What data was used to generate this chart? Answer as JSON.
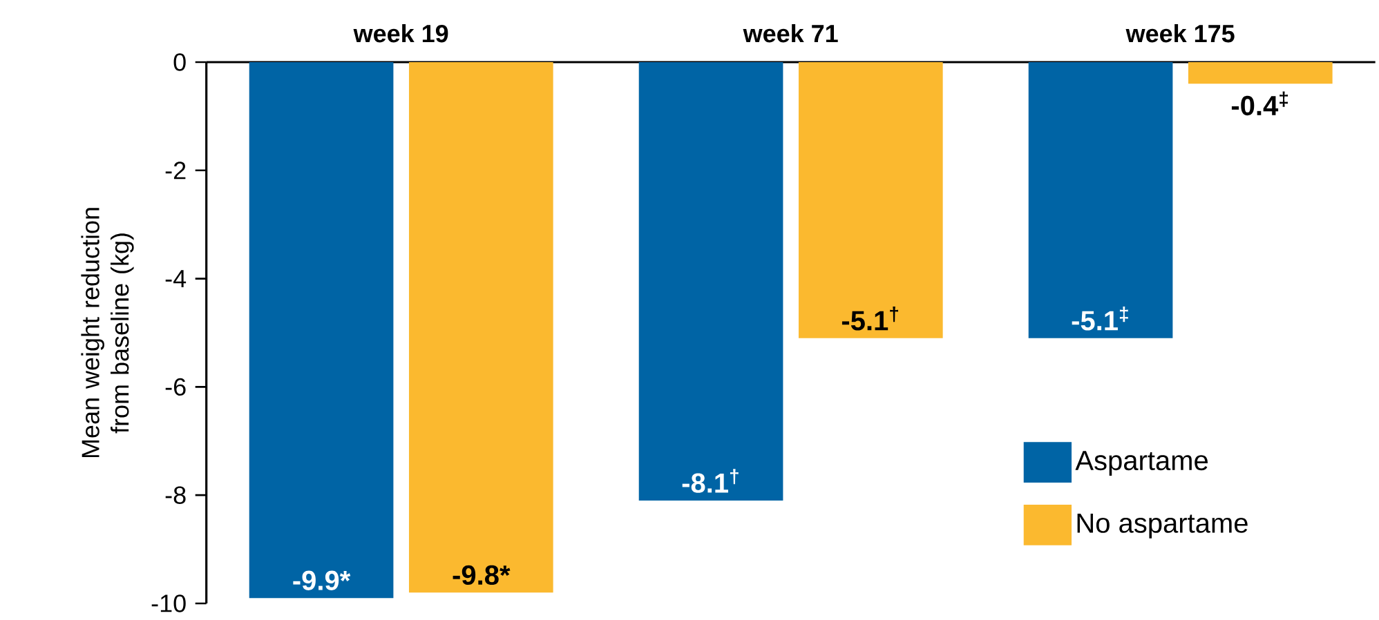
{
  "chart_data": {
    "type": "bar",
    "ylabel": "Mean weight reduction from baseline (kg)",
    "categories": [
      "week 19",
      "week 71",
      "week 175"
    ],
    "series": [
      {
        "name": "Aspartame",
        "color": "#0064a5",
        "values": [
          -9.9,
          -8.1,
          -5.1
        ],
        "value_labels": [
          "-9.9*",
          "-8.1$^{†}$",
          "-5.1$^{‡}$"
        ]
      },
      {
        "name": "No aspartame",
        "color": "#fbb92f",
        "values": [
          -9.8,
          -5.1,
          -0.4
        ],
        "value_labels": [
          "-9.8*",
          "-5.1$^{†}$",
          "-0.4$^{‡}$"
        ]
      }
    ],
    "ylim": [
      -10,
      0
    ],
    "yticks": [
      0,
      -2,
      -4,
      -6,
      -8,
      -10
    ],
    "grid": false,
    "legend": "bottom right"
  }
}
